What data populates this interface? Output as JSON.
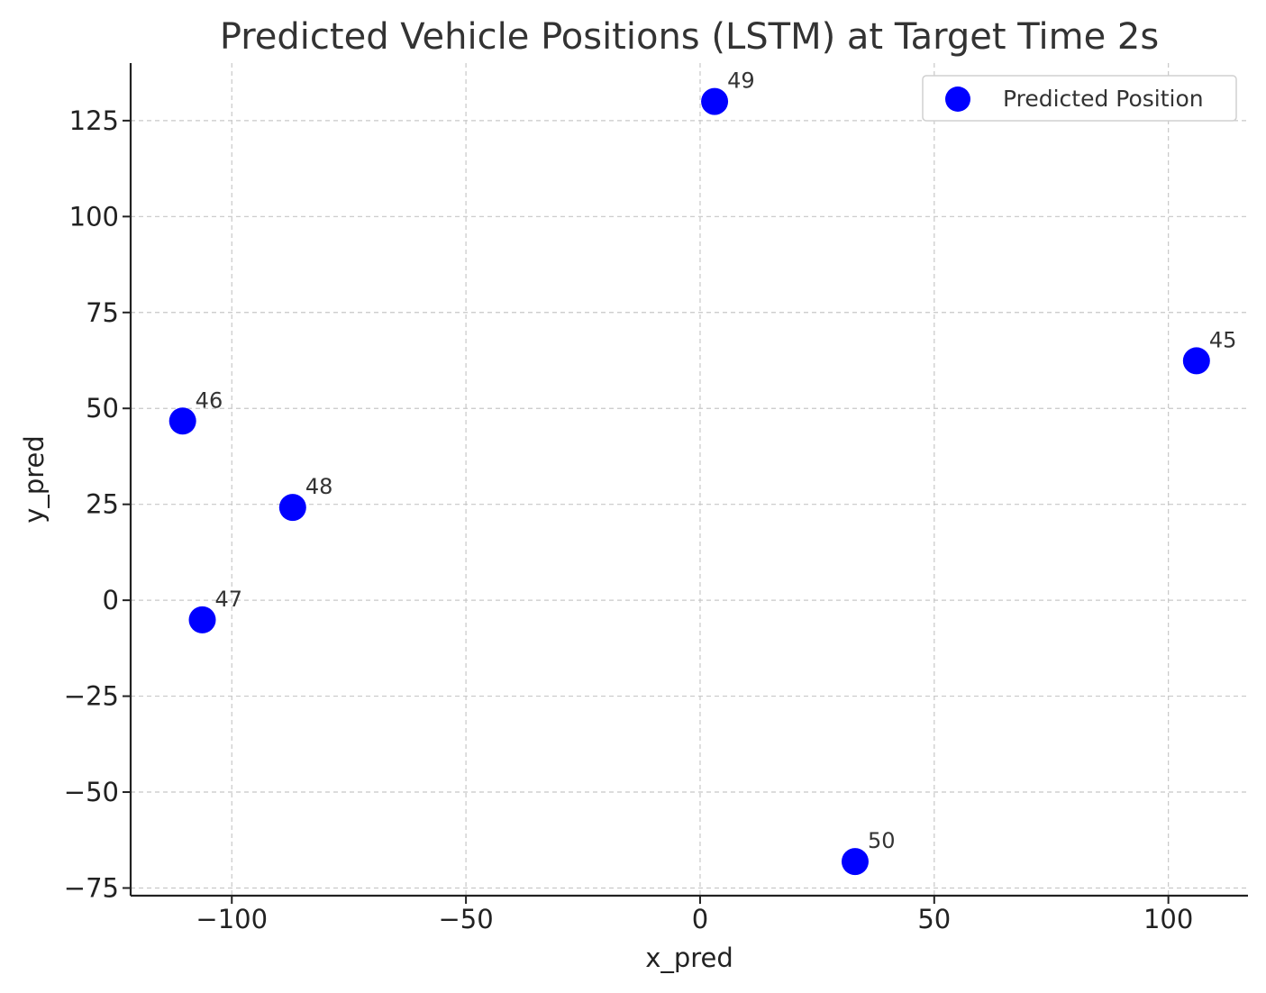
{
  "chart_data": {
    "type": "scatter",
    "title": "Predicted Vehicle Positions (LSTM) at Target Time 2s",
    "xlabel": "x_pred",
    "ylabel": "y_pred",
    "xlim": [
      -121.6,
      117.0
    ],
    "ylim": [
      -77.0,
      140.0
    ],
    "xticks": [
      -100,
      -50,
      0,
      50,
      100
    ],
    "yticks": [
      -75,
      -50,
      -25,
      0,
      25,
      50,
      75,
      100,
      125
    ],
    "xtick_labels": [
      "−100",
      "−50",
      "0",
      "50",
      "100"
    ],
    "ytick_labels": [
      "−75",
      "−50",
      "−25",
      "0",
      "25",
      "50",
      "75",
      "100",
      "125"
    ],
    "grid": true,
    "legend": {
      "position": "top-right",
      "entries": [
        "Predicted Position"
      ]
    },
    "series": [
      {
        "name": "Predicted Position",
        "color": "#0000ff",
        "points": [
          {
            "label": "45",
            "x": 106.0,
            "y": 62.4
          },
          {
            "label": "46",
            "x": -110.5,
            "y": 46.7
          },
          {
            "label": "47",
            "x": -106.3,
            "y": -5.1
          },
          {
            "label": "48",
            "x": -87.0,
            "y": 24.2
          },
          {
            "label": "49",
            "x": 3.1,
            "y": 130.0
          },
          {
            "label": "50",
            "x": 33.1,
            "y": -68.1
          }
        ]
      }
    ]
  }
}
